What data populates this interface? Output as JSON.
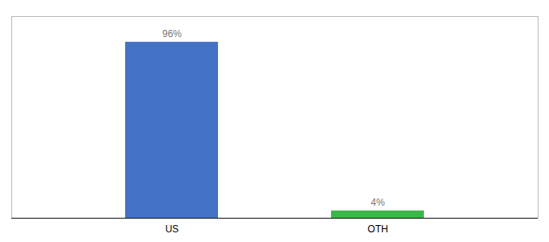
{
  "chart_data": {
    "type": "bar",
    "categories": [
      "US",
      "OTH"
    ],
    "values": [
      96,
      4
    ],
    "value_labels": [
      "96%",
      "4%"
    ],
    "colors": [
      "#4472c4",
      "#3cb84a"
    ],
    "ylim": [
      0,
      110
    ],
    "data_labels": true,
    "tick_labels": "x"
  }
}
